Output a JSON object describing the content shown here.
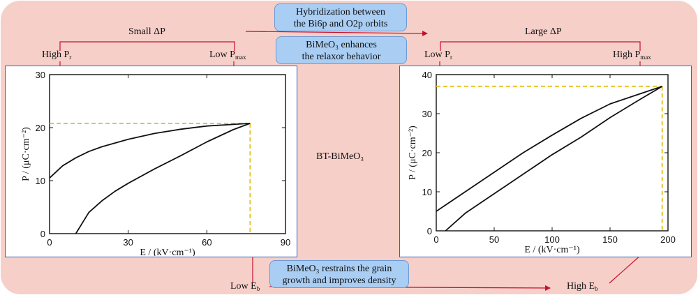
{
  "colors": {
    "background": "#f6cfc9",
    "arrow": "#c8102e",
    "guide": "#e5c21b",
    "box_fill": "#a9cdf3",
    "curve": "#111111"
  },
  "top_box": {
    "line1": "Hybridization between",
    "line2": "the Bi6p and O2p orbits"
  },
  "mid_box": {
    "line1": "BiMeO₃ enhances",
    "line2": "the relaxor behavior"
  },
  "bottom_box": {
    "line1": "BiMeO₃ restrains the grain",
    "line2": "growth and improves density"
  },
  "center_label": "BT-BiMeO₃",
  "left_group": {
    "header": "Small ΔP",
    "left_label": "High P",
    "left_sub": "r",
    "right_label": "Low P",
    "right_sub": "max",
    "bottom_label": "Low E",
    "bottom_sub": "b"
  },
  "right_group": {
    "header": "Large ΔP",
    "left_label": "Low P",
    "left_sub": "r",
    "right_label": "High P",
    "right_sub": "max",
    "bottom_label": "High E",
    "bottom_sub": "b"
  },
  "chart_data": [
    {
      "type": "line",
      "xlabel": "E / (kV·cm⁻¹)",
      "ylabel": "P / (μC·cm⁻²)",
      "xlim": [
        0,
        90
      ],
      "ylim": [
        0,
        30
      ],
      "xticks": [
        "0",
        "30",
        "60",
        "90"
      ],
      "yticks": [
        "0",
        "10",
        "20",
        "30"
      ],
      "series": [
        {
          "x": [
            0,
            5,
            10,
            15,
            20,
            30,
            40,
            50,
            60,
            70,
            76.5
          ],
          "y": [
            10.5,
            12.8,
            14.3,
            15.5,
            16.4,
            17.8,
            18.9,
            19.7,
            20.3,
            20.6,
            20.8
          ]
        },
        {
          "x": [
            76.5,
            70,
            60,
            50,
            40,
            30,
            25,
            20,
            15,
            12,
            10
          ],
          "y": [
            20.8,
            19.6,
            17.3,
            14.7,
            12.2,
            9.5,
            8.0,
            6.2,
            4.0,
            1.6,
            0
          ]
        }
      ],
      "guide": {
        "x": 76.5,
        "y": 20.8
      }
    },
    {
      "type": "line",
      "xlabel": "E / (kV·cm⁻¹)",
      "ylabel": "P / (μC·cm⁻²)",
      "xlim": [
        0,
        200
      ],
      "ylim": [
        0,
        40
      ],
      "xticks": [
        "0",
        "50",
        "100",
        "150",
        "200"
      ],
      "yticks": [
        "0",
        "10",
        "20",
        "30",
        "40"
      ],
      "series": [
        {
          "x": [
            0,
            25,
            50,
            75,
            100,
            125,
            150,
            175,
            195
          ],
          "y": [
            5,
            10,
            15,
            20,
            24.5,
            28.8,
            32.5,
            35,
            37
          ]
        },
        {
          "x": [
            195,
            175,
            150,
            125,
            100,
            75,
            50,
            25,
            8
          ],
          "y": [
            37,
            33.5,
            29,
            24,
            19.5,
            14.5,
            9.5,
            4.5,
            0
          ]
        }
      ],
      "guide": {
        "x": 195,
        "y": 37
      }
    }
  ]
}
